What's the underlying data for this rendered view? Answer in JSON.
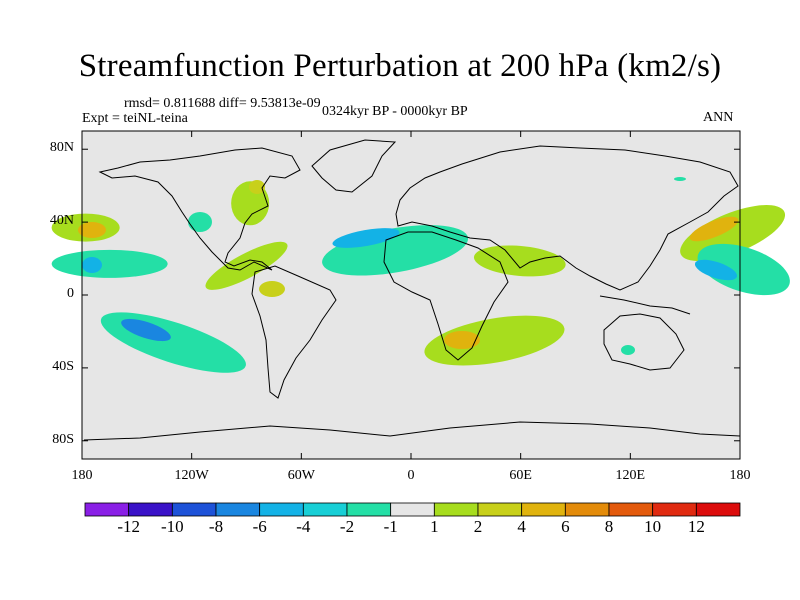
{
  "chart_data": {
    "type": "heatmap",
    "title": "Streamfunction Perturbation at 200 hPa (km2/s)",
    "subtitle_left_top": "rmsd= 0.811688 diff= 9.53813e-09",
    "subtitle_left": "Expt = teiNL-teina",
    "subtitle_center": "0324kyr BP - 0000kyr BP",
    "subtitle_right": "ANN",
    "projection": "cylindrical equidistant world map with coastlines",
    "xlim": [
      -180,
      180
    ],
    "ylim": [
      -90,
      90
    ],
    "x_ticks": [
      {
        "value": -180,
        "label": "180"
      },
      {
        "value": -120,
        "label": "120W"
      },
      {
        "value": -60,
        "label": "60W"
      },
      {
        "value": 0,
        "label": "0"
      },
      {
        "value": 60,
        "label": "60E"
      },
      {
        "value": 120,
        "label": "120E"
      },
      {
        "value": 180,
        "label": "180"
      }
    ],
    "y_ticks": [
      {
        "value": 80,
        "label": "80N"
      },
      {
        "value": 40,
        "label": "40N"
      },
      {
        "value": 0,
        "label": "0"
      },
      {
        "value": -40,
        "label": "40S"
      },
      {
        "value": -80,
        "label": "80S"
      }
    ],
    "colorbar": {
      "labels": [
        "-12",
        "-10",
        "-8",
        "-6",
        "-4",
        "-2",
        "-1",
        "1",
        "2",
        "4",
        "6",
        "8",
        "10",
        "12"
      ],
      "colors": [
        "#8a1fe6",
        "#3a12c8",
        "#1d52d8",
        "#1a86e0",
        "#13b2e6",
        "#18cfd6",
        "#24dfa6",
        "#e6e6e6",
        "#a7dd1e",
        "#c8d01a",
        "#e0b30e",
        "#e38b0a",
        "#e35a0c",
        "#e02a10",
        "#dc0c0c"
      ]
    },
    "anomalies": [
      {
        "name": "central-north-pacific",
        "lon": -178,
        "lat": 37,
        "level": 3
      },
      {
        "name": "tropical-central-pacific",
        "lon": -178,
        "lat": 16,
        "level": -3
      },
      {
        "name": "south-pacific",
        "lon": -130,
        "lat": -25,
        "level": -4
      },
      {
        "name": "hudson-bay",
        "lon": -88,
        "lat": 58,
        "level": 2
      },
      {
        "name": "caribbean",
        "lon": -90,
        "lat": 16,
        "level": 2
      },
      {
        "name": "north-africa-atlantic",
        "lon": -12,
        "lat": 30,
        "level": -3
      },
      {
        "name": "arabia-india",
        "lon": 65,
        "lat": 22,
        "level": 2
      },
      {
        "name": "southern-africa",
        "lon": 38,
        "lat": -25,
        "level": 3
      },
      {
        "name": "northwest-pacific",
        "lon": 165,
        "lat": 34,
        "level": 3
      },
      {
        "name": "tropical-west-pacific",
        "lon": 170,
        "lat": 14,
        "level": -3
      }
    ]
  }
}
